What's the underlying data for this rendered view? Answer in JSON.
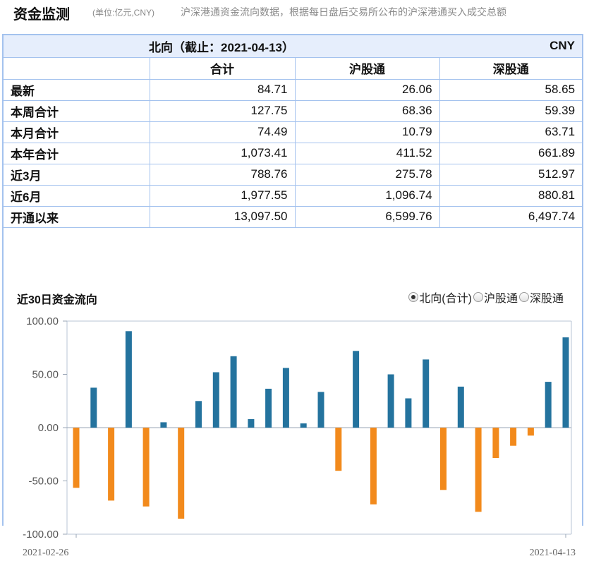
{
  "header": {
    "title": "资金监测",
    "unit_note": "(单位:亿元,CNY)",
    "description": "沪深港通资金流向数据，根据每日盘后交易所公布的沪深港通买入成交总额"
  },
  "table": {
    "title": "北向（截止：2021-04-13）",
    "currency": "CNY",
    "columns": [
      "合计",
      "沪股通",
      "深股通"
    ],
    "rows": [
      {
        "label": "最新",
        "values": [
          "84.71",
          "26.06",
          "58.65"
        ]
      },
      {
        "label": "本周合计",
        "values": [
          "127.75",
          "68.36",
          "59.39"
        ]
      },
      {
        "label": "本月合计",
        "values": [
          "74.49",
          "10.79",
          "63.71"
        ]
      },
      {
        "label": "本年合计",
        "values": [
          "1,073.41",
          "411.52",
          "661.89"
        ]
      },
      {
        "label": "近3月",
        "values": [
          "788.76",
          "275.78",
          "512.97"
        ]
      },
      {
        "label": "近6月",
        "values": [
          "1,977.55",
          "1,096.74",
          "880.81"
        ]
      },
      {
        "label": "开通以来",
        "values": [
          "13,097.50",
          "6,599.76",
          "6,497.74"
        ]
      }
    ]
  },
  "chart": {
    "title": "近30日资金流向",
    "legend": [
      {
        "label": "北向(合计)",
        "selected": true
      },
      {
        "label": "沪股通",
        "selected": false
      },
      {
        "label": "深股通",
        "selected": false
      }
    ]
  },
  "colors": {
    "positive": "#24739e",
    "negative": "#f28a1c",
    "border": "#a4c2ee",
    "header_bg": "#e6eefc"
  },
  "chart_data": {
    "type": "bar",
    "x_start_label": "2021-02-26",
    "x_end_label": "2021-04-13",
    "ylim": [
      -100,
      100
    ],
    "yticks": [
      "100.00",
      "50.00",
      "0.00",
      "-50.00",
      "-100.00"
    ],
    "ytick_values": [
      100,
      50,
      0,
      -50,
      -100
    ],
    "grid": false,
    "series": [
      {
        "values": [
          -56.5,
          37.5,
          -68.5,
          90.5,
          -74.0,
          5.0,
          -85.5,
          25.0,
          52.0,
          67.0,
          8.0,
          36.5,
          56.0,
          4.0,
          33.5,
          -40.5,
          72.0,
          -72.0,
          50.0,
          27.5,
          64.0,
          -58.5,
          38.5,
          -79.0,
          -28.5,
          -17.0,
          -7.5,
          43.0,
          84.71
        ]
      }
    ]
  }
}
